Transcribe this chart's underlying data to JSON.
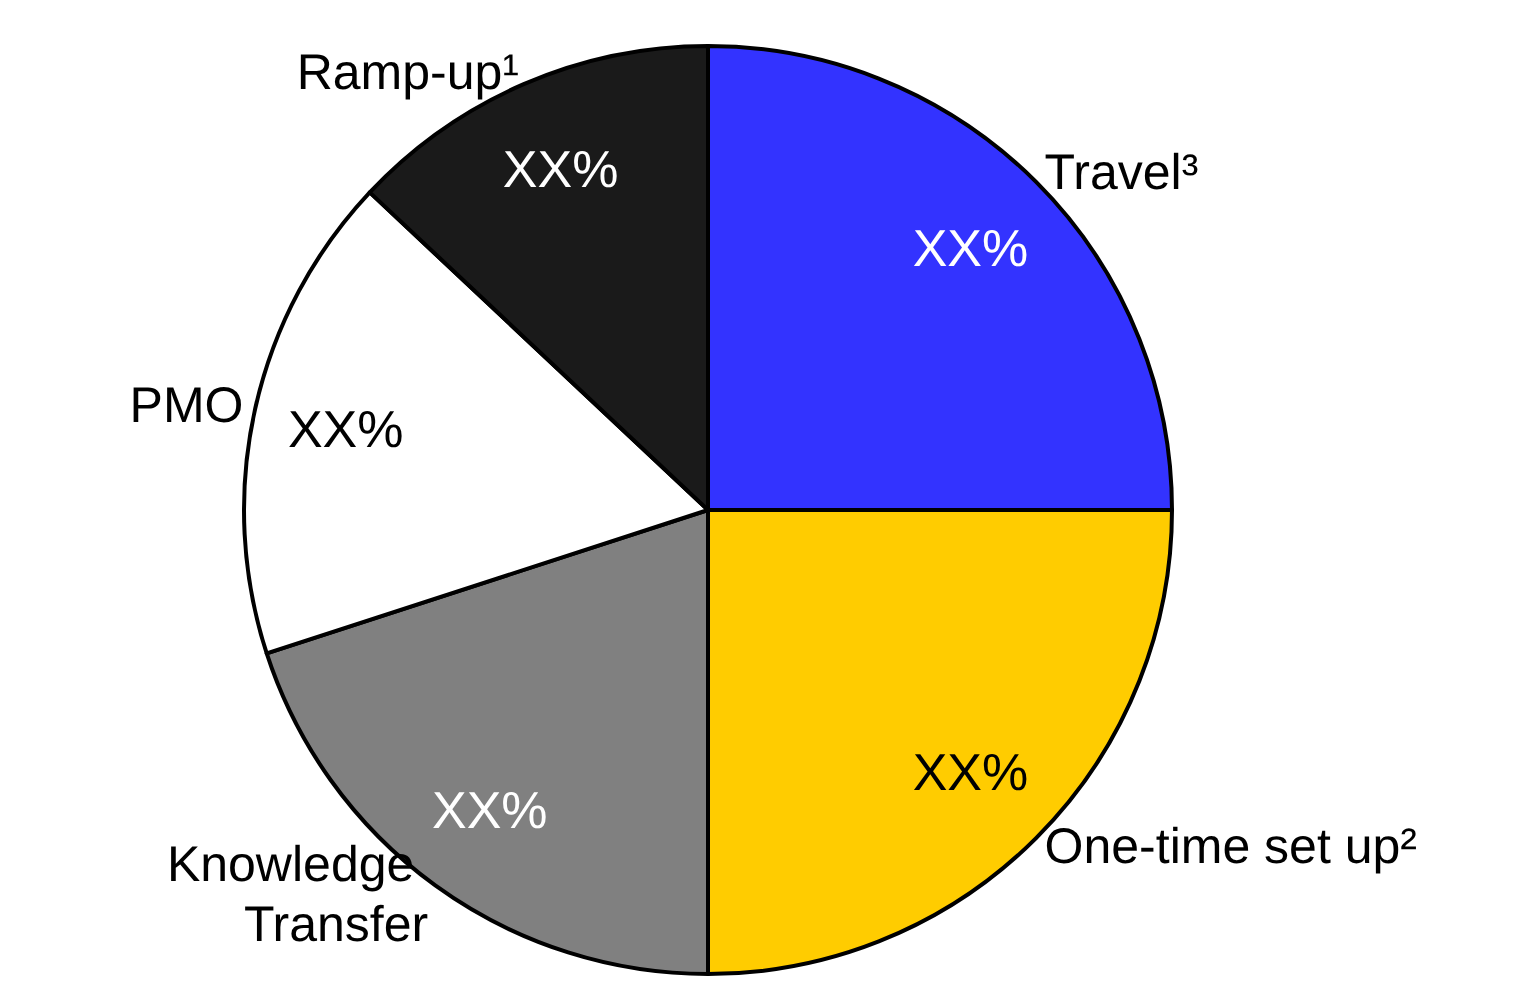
{
  "chart_data": {
    "type": "pie",
    "categories": [
      "Travel³",
      "One-time set up²",
      "Knowledge Transfer",
      "PMO",
      "Ramp-up¹"
    ],
    "values": [
      25,
      25,
      20,
      17,
      13
    ],
    "colors": [
      "#3333ff",
      "#ffcc00",
      "#808080",
      "#ffffff",
      "#1a1a1a"
    ],
    "value_labels": [
      "XX%",
      "XX%",
      "XX%",
      "XX%",
      "XX%"
    ]
  }
}
